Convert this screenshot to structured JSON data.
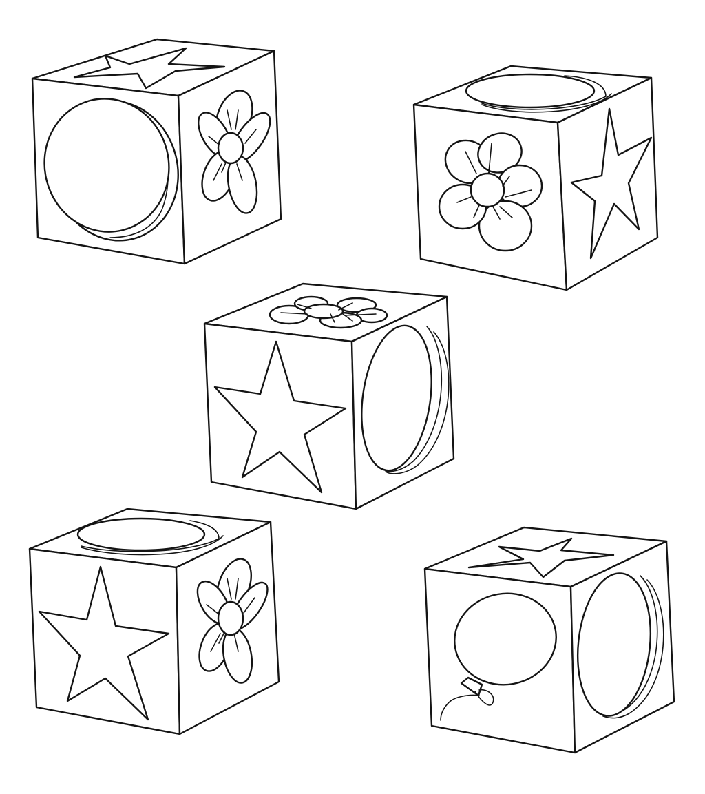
{
  "colors": {
    "line": "#141414",
    "paper": "#ffffff"
  },
  "cubes": [
    {
      "name": "cube-top-left",
      "front": "circle-icon",
      "side": "flower-icon",
      "top": "star-icon"
    },
    {
      "name": "cube-top-right",
      "front": "flower-icon",
      "side": "star-icon",
      "top": "circle-icon"
    },
    {
      "name": "cube-middle",
      "front": "star-icon",
      "side": "circle-icon",
      "top": "flower-icon"
    },
    {
      "name": "cube-bottom-left",
      "front": "star-icon",
      "side": "flower-icon",
      "top": "circle-icon"
    },
    {
      "name": "cube-bottom-right",
      "front": "balloon-icon",
      "side": "circle-icon",
      "top": "star-icon"
    }
  ]
}
